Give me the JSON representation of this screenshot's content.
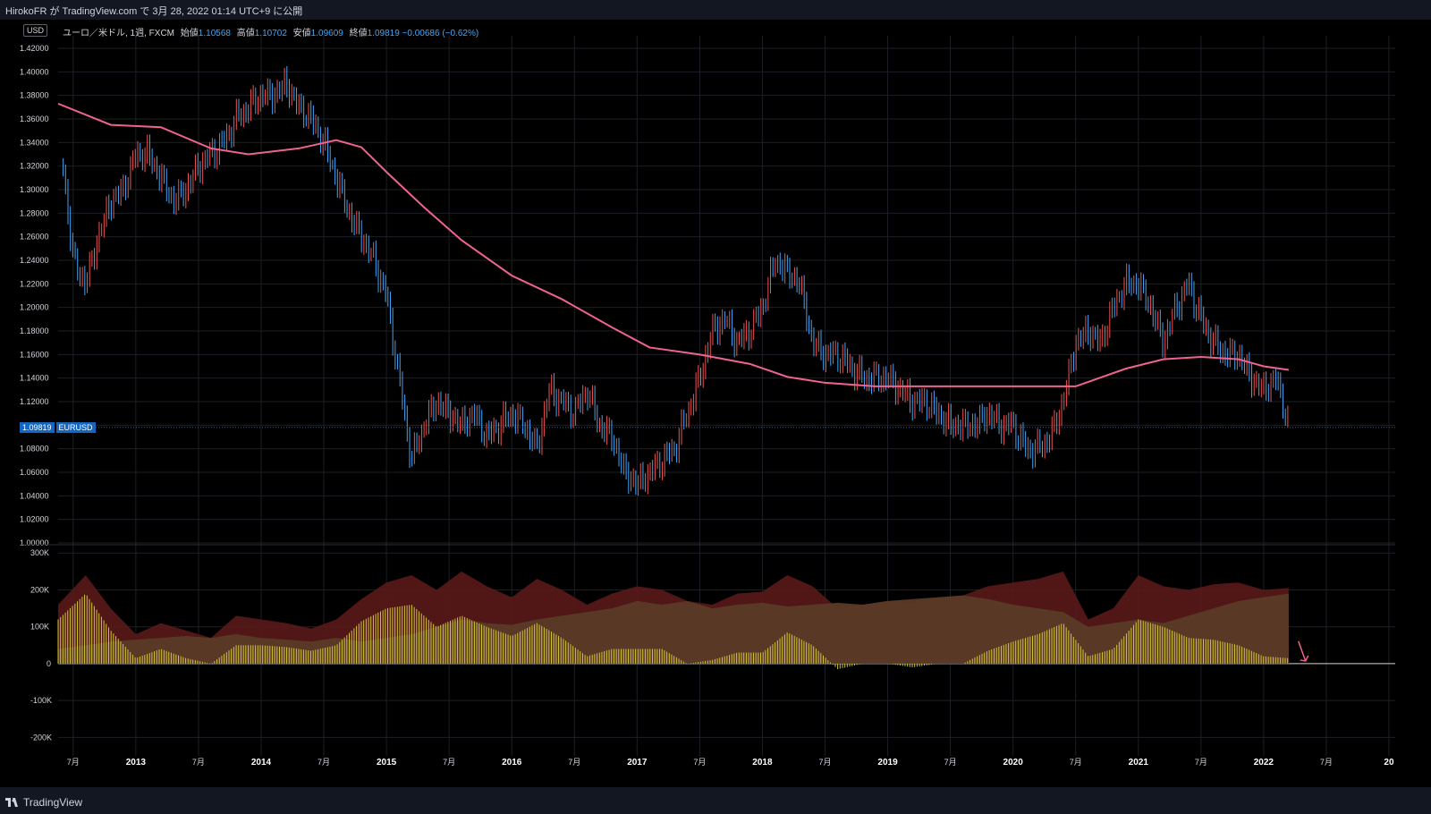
{
  "header": {
    "publish_text": "HirokoFR が TradingView.com で 3月 28, 2022 01:14 UTC+9 に公開"
  },
  "legend": {
    "currency_badge": "USD",
    "symbol_text": "ユーロ／米ドル, 1週, FXCM",
    "open_label": "始値",
    "open_value": "1.10568",
    "high_label": "高値",
    "high_value": "1.10702",
    "low_label": "安値",
    "low_value": "1.09609",
    "close_label": "終値",
    "close_value": "1.09819",
    "change_value": "−0.00686 (−0.62%)"
  },
  "last_price": {
    "value": "1.09819",
    "symbol": "EURUSD"
  },
  "footer": {
    "brand": "TradingView"
  },
  "colors": {
    "up": "#ef5350",
    "down": "#42a5f5",
    "ma": "#f06292",
    "hist": "#d4c832",
    "area_red": "#5a1a1a",
    "area_green": "#2e4a24",
    "area_brown": "#5a3a26"
  },
  "chart_data": [
    {
      "type": "line",
      "role": "price",
      "y_ticks": [
        "1.42000",
        "1.40000",
        "1.38000",
        "1.36000",
        "1.34000",
        "1.32000",
        "1.30000",
        "1.28000",
        "1.26000",
        "1.24000",
        "1.22000",
        "1.20000",
        "1.18000",
        "1.16000",
        "1.14000",
        "1.12000",
        "1.10000",
        "1.08000",
        "1.06000",
        "1.04000",
        "1.02000",
        "1.00000"
      ],
      "ylim": [
        1.0,
        1.42
      ],
      "x_ticks": [
        "7月",
        "2013",
        "7月",
        "2014",
        "7月",
        "2015",
        "7月",
        "2016",
        "7月",
        "2017",
        "7月",
        "2018",
        "7月",
        "2019",
        "7月",
        "2020",
        "7月",
        "2021",
        "7月",
        "2022",
        "7月",
        "20"
      ],
      "xlim": [
        2012.38,
        2023.05
      ],
      "series": [
        {
          "kind": "candles",
          "x": [
            2012.42,
            2012.5,
            2012.6,
            2012.7,
            2012.8,
            2012.9,
            2013.0,
            2013.1,
            2013.2,
            2013.3,
            2013.4,
            2013.5,
            2013.6,
            2013.7,
            2013.8,
            2013.9,
            2014.0,
            2014.1,
            2014.2,
            2014.3,
            2014.4,
            2014.5,
            2014.6,
            2014.7,
            2014.8,
            2014.9,
            2015.0,
            2015.1,
            2015.2,
            2015.3,
            2015.4,
            2015.5,
            2015.6,
            2015.7,
            2015.8,
            2015.9,
            2016.0,
            2016.1,
            2016.2,
            2016.3,
            2016.4,
            2016.5,
            2016.6,
            2016.7,
            2016.8,
            2016.9,
            2017.0,
            2017.1,
            2017.2,
            2017.3,
            2017.4,
            2017.5,
            2017.6,
            2017.7,
            2017.8,
            2017.9,
            2018.0,
            2018.1,
            2018.2,
            2018.3,
            2018.4,
            2018.5,
            2018.6,
            2018.7,
            2018.8,
            2018.9,
            2019.0,
            2019.1,
            2019.2,
            2019.3,
            2019.4,
            2019.5,
            2019.6,
            2019.7,
            2019.8,
            2019.9,
            2020.0,
            2020.1,
            2020.2,
            2020.3,
            2020.4,
            2020.5,
            2020.6,
            2020.7,
            2020.8,
            2020.9,
            2021.0,
            2021.1,
            2021.2,
            2021.3,
            2021.4,
            2021.5,
            2021.6,
            2021.7,
            2021.8,
            2021.9,
            2022.0,
            2022.1,
            2022.2
          ],
          "close": [
            1.32,
            1.24,
            1.22,
            1.26,
            1.29,
            1.3,
            1.33,
            1.33,
            1.31,
            1.29,
            1.3,
            1.32,
            1.33,
            1.34,
            1.36,
            1.37,
            1.38,
            1.38,
            1.39,
            1.37,
            1.36,
            1.34,
            1.31,
            1.28,
            1.26,
            1.24,
            1.21,
            1.14,
            1.07,
            1.1,
            1.12,
            1.11,
            1.1,
            1.11,
            1.09,
            1.1,
            1.11,
            1.1,
            1.08,
            1.13,
            1.12,
            1.11,
            1.13,
            1.1,
            1.09,
            1.06,
            1.05,
            1.06,
            1.07,
            1.08,
            1.11,
            1.14,
            1.18,
            1.19,
            1.17,
            1.18,
            1.2,
            1.24,
            1.23,
            1.22,
            1.17,
            1.16,
            1.16,
            1.15,
            1.14,
            1.14,
            1.14,
            1.13,
            1.12,
            1.12,
            1.11,
            1.1,
            1.1,
            1.1,
            1.11,
            1.1,
            1.1,
            1.08,
            1.08,
            1.09,
            1.12,
            1.17,
            1.18,
            1.17,
            1.2,
            1.22,
            1.22,
            1.2,
            1.17,
            1.2,
            1.22,
            1.19,
            1.17,
            1.16,
            1.16,
            1.14,
            1.13,
            1.14,
            1.1
          ]
        },
        {
          "kind": "line",
          "name": "",
          "x": [
            2012.38,
            2012.8,
            2013.2,
            2013.6,
            2013.9,
            2014.3,
            2014.6,
            2014.8,
            2015.0,
            2015.3,
            2015.6,
            2016.0,
            2016.4,
            2016.8,
            2017.1,
            2017.5,
            2017.9,
            2018.2,
            2018.5,
            2018.9,
            2019.3,
            2019.7,
            2020.1,
            2020.5,
            2020.9,
            2021.2,
            2021.5,
            2021.8,
            2022.0,
            2022.2
          ],
          "values": [
            1.373,
            1.355,
            1.353,
            1.335,
            1.33,
            1.335,
            1.342,
            1.336,
            1.315,
            1.285,
            1.257,
            1.227,
            1.207,
            1.183,
            1.166,
            1.16,
            1.152,
            1.141,
            1.136,
            1.133,
            1.133,
            1.133,
            1.133,
            1.133,
            1.148,
            1.156,
            1.158,
            1.156,
            1.15,
            1.147
          ]
        }
      ]
    },
    {
      "type": "area",
      "role": "indicator",
      "y_ticks": [
        "300K",
        "200K",
        "100K",
        "0",
        "-100K",
        "-200K"
      ],
      "ylim": [
        -250000,
        320000
      ],
      "x": [
        2012.38,
        2012.6,
        2012.8,
        2013.0,
        2013.2,
        2013.4,
        2013.6,
        2013.8,
        2014.0,
        2014.2,
        2014.4,
        2014.6,
        2014.8,
        2015.0,
        2015.2,
        2015.4,
        2015.6,
        2015.8,
        2016.0,
        2016.2,
        2016.4,
        2016.6,
        2016.8,
        2017.0,
        2017.2,
        2017.4,
        2017.6,
        2017.8,
        2018.0,
        2018.2,
        2018.4,
        2018.6,
        2018.8,
        2019.0,
        2019.2,
        2019.4,
        2019.6,
        2019.8,
        2020.0,
        2020.2,
        2020.4,
        2020.6,
        2020.8,
        2021.0,
        2021.2,
        2021.4,
        2021.6,
        2021.8,
        2022.0,
        2022.2
      ],
      "long": [
        160000,
        240000,
        150000,
        80000,
        110000,
        90000,
        70000,
        130000,
        120000,
        110000,
        95000,
        120000,
        175000,
        220000,
        240000,
        200000,
        250000,
        210000,
        180000,
        230000,
        200000,
        160000,
        190000,
        210000,
        200000,
        170000,
        160000,
        190000,
        195000,
        240000,
        210000,
        150000,
        160000,
        170000,
        165000,
        180000,
        185000,
        210000,
        220000,
        230000,
        250000,
        120000,
        150000,
        240000,
        210000,
        200000,
        215000,
        220000,
        200000,
        205000
      ],
      "short": [
        40000,
        50000,
        60000,
        65000,
        70000,
        75000,
        70000,
        80000,
        70000,
        65000,
        60000,
        70000,
        60000,
        70000,
        80000,
        100000,
        120000,
        110000,
        105000,
        120000,
        130000,
        140000,
        150000,
        170000,
        160000,
        170000,
        150000,
        160000,
        165000,
        155000,
        160000,
        165000,
        160000,
        170000,
        175000,
        180000,
        185000,
        175000,
        160000,
        150000,
        140000,
        100000,
        110000,
        120000,
        110000,
        130000,
        150000,
        170000,
        180000,
        190000
      ],
      "net": [
        120000,
        190000,
        90000,
        15000,
        40000,
        15000,
        0,
        50000,
        50000,
        45000,
        35000,
        50000,
        115000,
        150000,
        160000,
        100000,
        130000,
        100000,
        75000,
        110000,
        70000,
        20000,
        40000,
        40000,
        40000,
        0,
        10000,
        30000,
        30000,
        85000,
        50000,
        -15000,
        0,
        0,
        -10000,
        0,
        0,
        35000,
        60000,
        80000,
        110000,
        20000,
        40000,
        120000,
        100000,
        70000,
        65000,
        50000,
        20000,
        15000
      ]
    }
  ]
}
